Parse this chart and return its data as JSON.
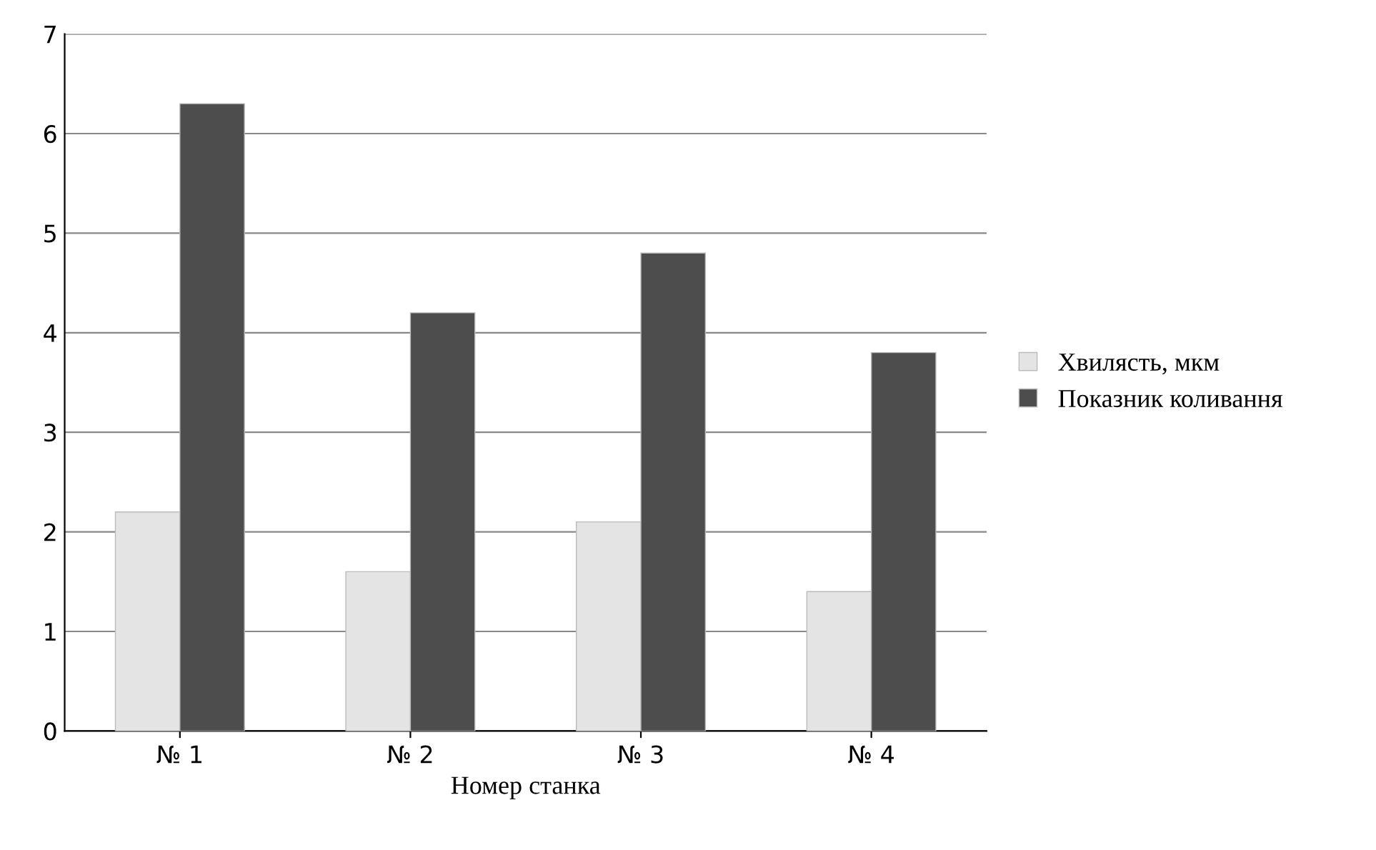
{
  "chart_data": {
    "type": "bar",
    "xlabel": "Номер станка",
    "categories": [
      "№ 1",
      "№ 2",
      "№ 3",
      "№ 4"
    ],
    "series": [
      {
        "name": "Хвилясть, мкм",
        "color": "#e4e4e4",
        "values": [
          2.2,
          1.6,
          2.1,
          1.4
        ]
      },
      {
        "name": "Показник коливання",
        "color": "#4d4d4d",
        "values": [
          6.3,
          4.2,
          4.8,
          3.8
        ]
      }
    ],
    "ylim": [
      0,
      7
    ],
    "yticks": [
      0,
      1,
      2,
      3,
      4,
      5,
      6,
      7
    ],
    "grid": "y",
    "legend": "right"
  }
}
